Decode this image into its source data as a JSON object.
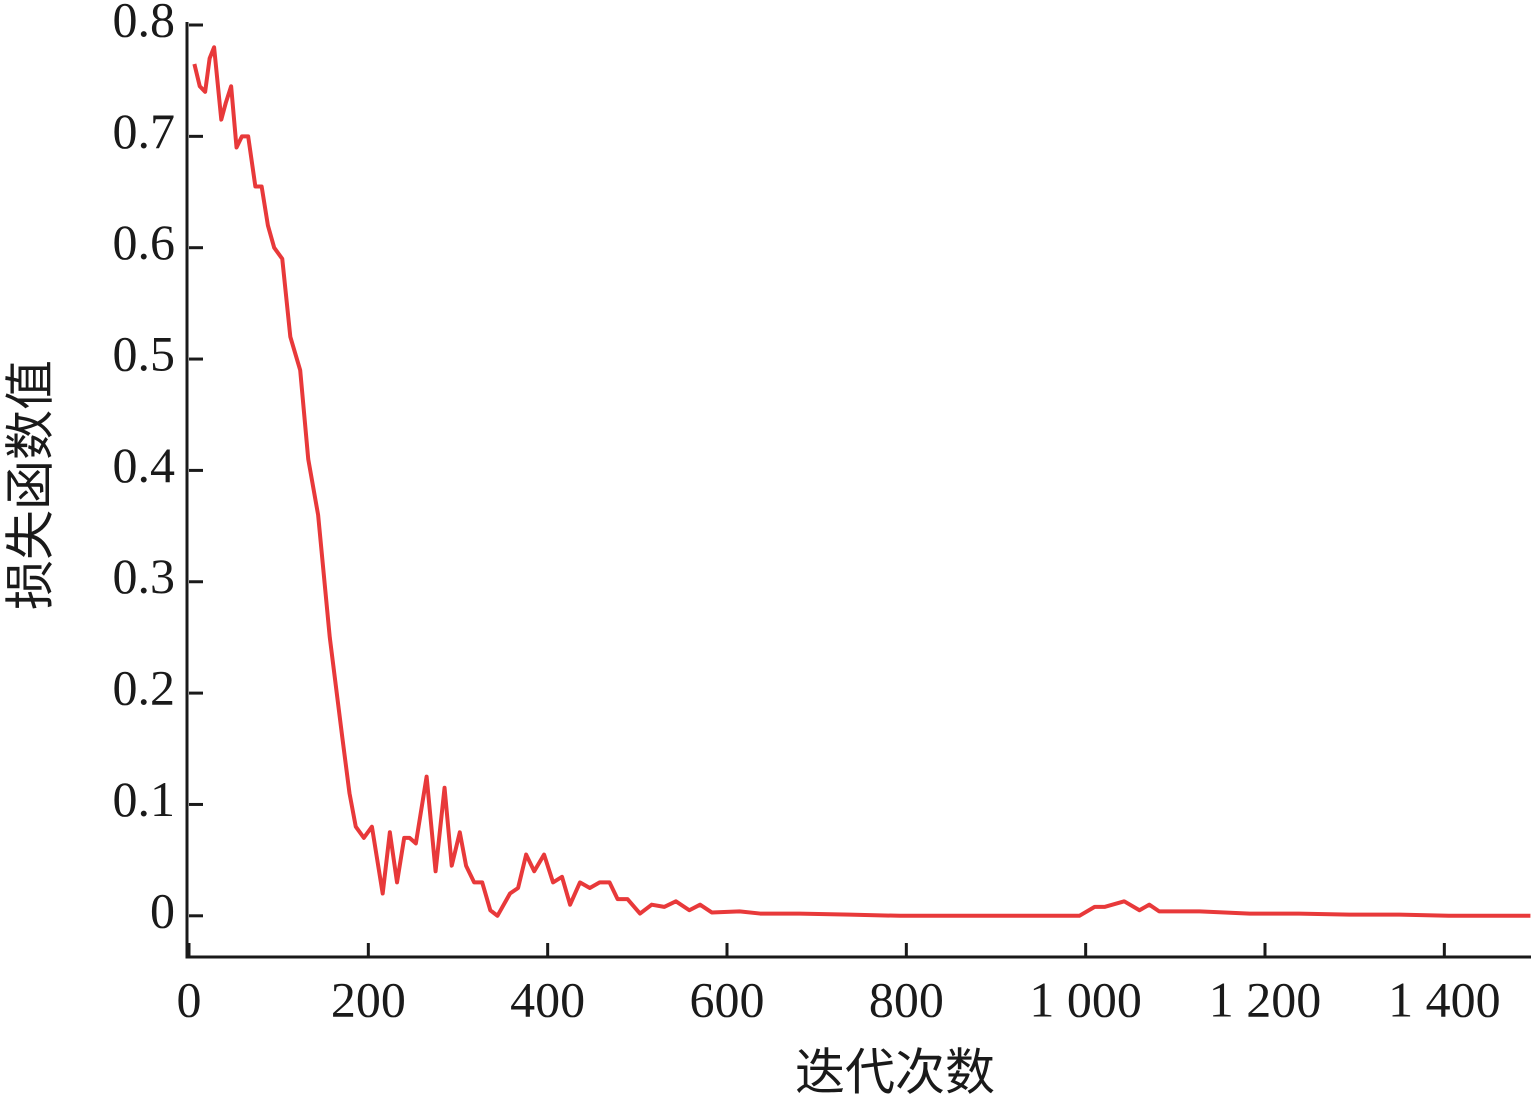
{
  "chart_data": {
    "type": "line",
    "xlabel": "迭代次数",
    "ylabel": "损失函数值",
    "xlim": [
      0,
      1500
    ],
    "ylim": [
      -0.037,
      0.8
    ],
    "xticks": [
      0,
      200,
      400,
      600,
      800,
      {
        "value": 1000,
        "label": "1 000"
      },
      {
        "value": 1200,
        "label": "1 200"
      },
      {
        "value": 1400,
        "label": "1 400"
      }
    ],
    "yticks": [
      0,
      0.1,
      0.2,
      0.3,
      0.4,
      0.5,
      0.6,
      0.7,
      0.8
    ],
    "x": [
      6,
      12,
      18,
      23,
      28,
      36,
      41,
      47,
      53,
      59,
      66,
      74,
      81,
      88,
      95,
      104,
      113,
      124,
      133,
      144,
      157,
      171,
      179,
      186,
      195,
      204,
      216,
      224,
      232,
      240,
      246,
      253,
      265,
      275,
      285,
      293,
      302,
      309,
      318,
      327,
      336,
      344,
      358,
      367,
      376,
      385,
      396,
      406,
      416,
      425,
      436,
      447,
      458,
      469,
      478,
      489,
      503,
      516,
      530,
      543,
      558,
      570,
      583,
      614,
      637,
      681,
      737,
      793,
      904,
      993,
      1010,
      1021,
      1043,
      1060,
      1071,
      1082,
      1127,
      1183,
      1238,
      1294,
      1350,
      1405,
      1496
    ],
    "series": [
      {
        "color": "#e8393a",
        "values": [
          0.765,
          0.745,
          0.74,
          0.77,
          0.78,
          0.715,
          0.73,
          0.745,
          0.69,
          0.7,
          0.7,
          0.655,
          0.655,
          0.62,
          0.6,
          0.59,
          0.52,
          0.49,
          0.41,
          0.36,
          0.25,
          0.16,
          0.11,
          0.08,
          0.07,
          0.08,
          0.02,
          0.075,
          0.03,
          0.07,
          0.07,
          0.065,
          0.125,
          0.04,
          0.115,
          0.045,
          0.075,
          0.045,
          0.03,
          0.03,
          0.005,
          0.0,
          0.02,
          0.025,
          0.055,
          0.04,
          0.055,
          0.03,
          0.035,
          0.01,
          0.03,
          0.025,
          0.03,
          0.03,
          0.015,
          0.015,
          0.002,
          0.01,
          0.008,
          0.013,
          0.005,
          0.01,
          0.003,
          0.004,
          0.002,
          0.002,
          0.001,
          0.0,
          0.0,
          0.0,
          0.008,
          0.008,
          0.013,
          0.005,
          0.01,
          0.004,
          0.004,
          0.002,
          0.002,
          0.001,
          0.001,
          0.0,
          0.0
        ]
      }
    ]
  }
}
